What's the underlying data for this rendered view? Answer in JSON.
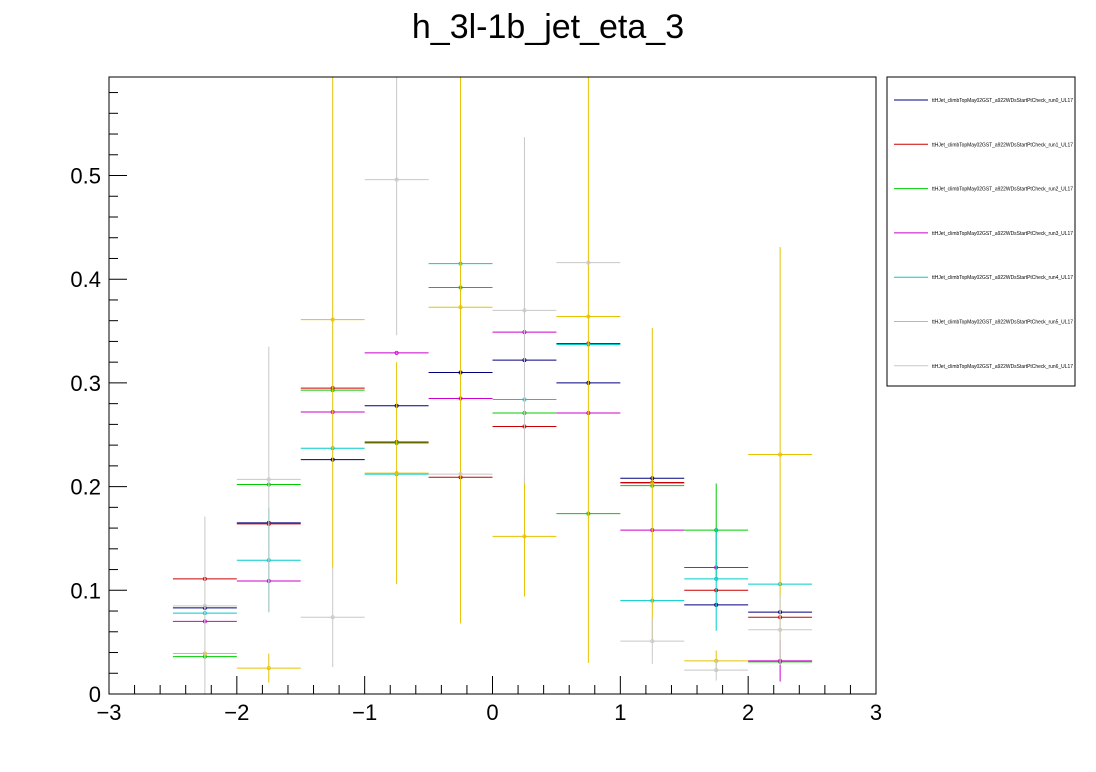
{
  "chart_data": {
    "type": "scatter",
    "title": "h_3l-1b_jet_eta_3",
    "xlabel": "",
    "ylabel": "",
    "xlim": [
      -3,
      3
    ],
    "ylim": [
      0,
      0.595
    ],
    "x_ticks": [
      "−3",
      "−2",
      "−1",
      "0",
      "1",
      "2",
      "3"
    ],
    "y_ticks": [
      "0",
      "0.1",
      "0.2",
      "0.3",
      "0.4",
      "0.5"
    ],
    "grid": false,
    "legend_position": "top-right",
    "bin_edges": [
      -2.5,
      -2.0,
      -1.5,
      -1.0,
      -0.5,
      0.0,
      0.5,
      1.0,
      1.5,
      2.0,
      2.5
    ],
    "x": [
      -2.25,
      -1.75,
      -1.25,
      -0.75,
      -0.25,
      0.25,
      0.75,
      1.25,
      1.75,
      2.25
    ],
    "series": [
      {
        "name": "ttHJet_climbTopMay02GST_a922WDsStartPtCheck_run0_UL17",
        "color": "#00007f",
        "values": [
          0.083,
          0.165,
          0.226,
          0.278,
          0.31,
          0.322,
          0.3,
          0.208,
          0.086,
          0.079
        ],
        "errors": [
          0.0,
          0.0,
          0.0,
          0.0,
          0.0,
          0.0,
          0.0,
          0.0,
          0.0,
          0.0
        ]
      },
      {
        "name": "ttHJet_climbTopMay02GST_a922WDsStartPtCheck_run1_UL17",
        "color": "#cc0000",
        "values": [
          0.111,
          0.164,
          0.295,
          0.243,
          0.209,
          0.258,
          0.338,
          0.204,
          0.1,
          0.074
        ],
        "errors": [
          0.0,
          0.0,
          0.0,
          0.0,
          0.0,
          0.0,
          0.0,
          0.0,
          0.0,
          0.0
        ]
      },
      {
        "name": "ttHJet_climbTopMay02GST_a922WDsStartPtCheck_run2_UL17",
        "color": "#00cc00",
        "values": [
          0.036,
          0.202,
          0.293,
          0.242,
          0.392,
          0.271,
          0.174,
          0.201,
          0.158,
          0.031
        ],
        "errors": [
          0.0,
          0.0,
          0.0,
          0.0,
          0.0,
          0.0,
          0.0,
          0.0,
          0.045,
          0.0
        ]
      },
      {
        "name": "ttHJet_climbTopMay02GST_a922WDsStartPtCheck_run3_UL17",
        "color": "#cc00cc",
        "values": [
          0.07,
          0.109,
          0.272,
          0.329,
          0.285,
          0.349,
          0.271,
          0.158,
          0.122,
          0.032
        ],
        "errors": [
          0.0,
          0.0,
          0.0,
          0.0,
          0.0,
          0.0,
          0.0,
          0.0,
          0.0,
          0.02
        ]
      },
      {
        "name": "ttHJet_climbTopMay02GST_a922WDsStartPtCheck_run4_UL17",
        "color": "#00cccc",
        "values": [
          0.078,
          0.129,
          0.237,
          0.212,
          0.415,
          0.284,
          0.337,
          0.09,
          0.111,
          0.106
        ],
        "errors": [
          0.0,
          0.05,
          0.0,
          0.0,
          0.0,
          0.0,
          0.0,
          0.0,
          0.05,
          0.0
        ]
      },
      {
        "name": "ttHJet_climbTopMay02GST_a922WDsStartPtCheck_run5_UL17",
        "color": "#e6c200",
        "values": [
          0.039,
          0.025,
          0.361,
          0.213,
          0.373,
          0.152,
          0.364,
          0.203,
          0.032,
          0.231
        ],
        "errors": [
          0.0,
          0.014,
          0.24,
          0.107,
          0.305,
          0.058,
          0.334,
          0.15,
          0.01,
          0.2
        ]
      },
      {
        "name": "ttHJet_climbTopMay02GST_a922WDsStartPtCheck_run6_UL17",
        "color": "#c8c8c8",
        "values": [
          0.085,
          0.207,
          0.074,
          0.496,
          0.212,
          0.37,
          0.416,
          0.051,
          0.023,
          0.062
        ],
        "errors": [
          0.086,
          0.128,
          0.048,
          0.15,
          0.0,
          0.167,
          0.0,
          0.022,
          0.01,
          0.034
        ]
      }
    ]
  }
}
